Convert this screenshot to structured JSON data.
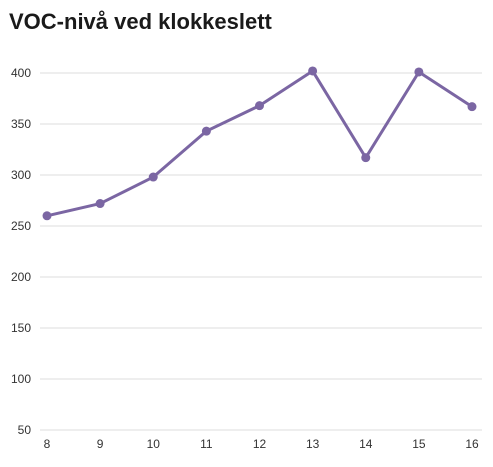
{
  "title": "VOC-nivå ved klokkeslett",
  "chart_data": {
    "type": "line",
    "title": "VOC-nivå ved klokkeslett",
    "xlabel": "",
    "ylabel": "",
    "x": [
      8,
      9,
      10,
      11,
      12,
      13,
      14,
      15,
      16
    ],
    "series": [
      {
        "values": [
          260,
          272,
          298,
          343,
          368,
          402,
          317,
          401,
          367
        ]
      }
    ],
    "ylim": [
      50,
      400
    ],
    "yticks": [
      50,
      100,
      150,
      200,
      250,
      300,
      350,
      400
    ],
    "grid": "horizontal",
    "line_color": "#7b66a3",
    "grid_color": "#dddddd"
  }
}
